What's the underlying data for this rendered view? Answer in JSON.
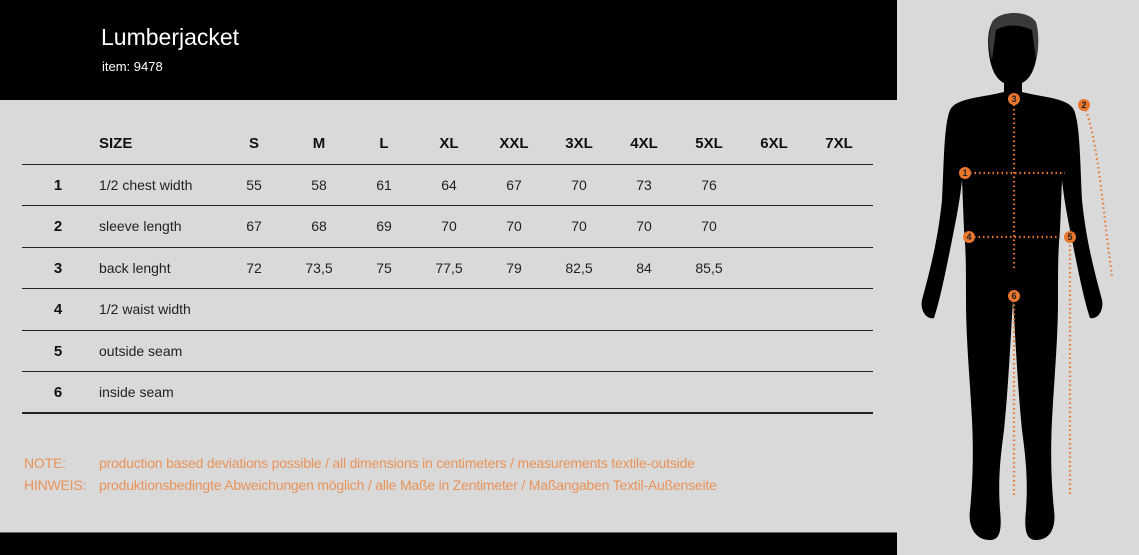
{
  "header": {
    "title": "Lumberjacket",
    "item": "item: 9478"
  },
  "table": {
    "size_label": "SIZE",
    "sizes": [
      "S",
      "M",
      "L",
      "XL",
      "XXL",
      "3XL",
      "4XL",
      "5XL",
      "6XL",
      "7XL"
    ],
    "rows": [
      {
        "num": "1",
        "label": "1/2 chest width",
        "values": [
          "55",
          "58",
          "61",
          "64",
          "67",
          "70",
          "73",
          "76",
          "",
          ""
        ]
      },
      {
        "num": "2",
        "label": "sleeve length",
        "values": [
          "67",
          "68",
          "69",
          "70",
          "70",
          "70",
          "70",
          "70",
          "",
          ""
        ]
      },
      {
        "num": "3",
        "label": "back lenght",
        "values": [
          "72",
          "73,5",
          "75",
          "77,5",
          "79",
          "82,5",
          "84",
          "85,5",
          "",
          ""
        ]
      },
      {
        "num": "4",
        "label": "1/2 waist width",
        "values": [
          "",
          "",
          "",
          "",
          "",
          "",
          "",
          "",
          "",
          ""
        ]
      },
      {
        "num": "5",
        "label": "outside seam",
        "values": [
          "",
          "",
          "",
          "",
          "",
          "",
          "",
          "",
          "",
          ""
        ]
      },
      {
        "num": "6",
        "label": "inside seam",
        "values": [
          "",
          "",
          "",
          "",
          "",
          "",
          "",
          "",
          "",
          ""
        ]
      }
    ]
  },
  "notes": [
    {
      "label": "NOTE:",
      "text": "production based deviations possible / all dimensions in centimeters / measurements textile-outside"
    },
    {
      "label": "HINWEIS:",
      "text": "produktionsbedingte Abweichungen möglich / alle Maße in Zentimeter / Maßangaben Textil-Außenseite"
    }
  ],
  "figure": {
    "markers": [
      "1",
      "2",
      "3",
      "4",
      "5",
      "6"
    ]
  },
  "colors": {
    "accent": "#e8762d",
    "background": "#d9d9d9",
    "header": "#000000"
  }
}
